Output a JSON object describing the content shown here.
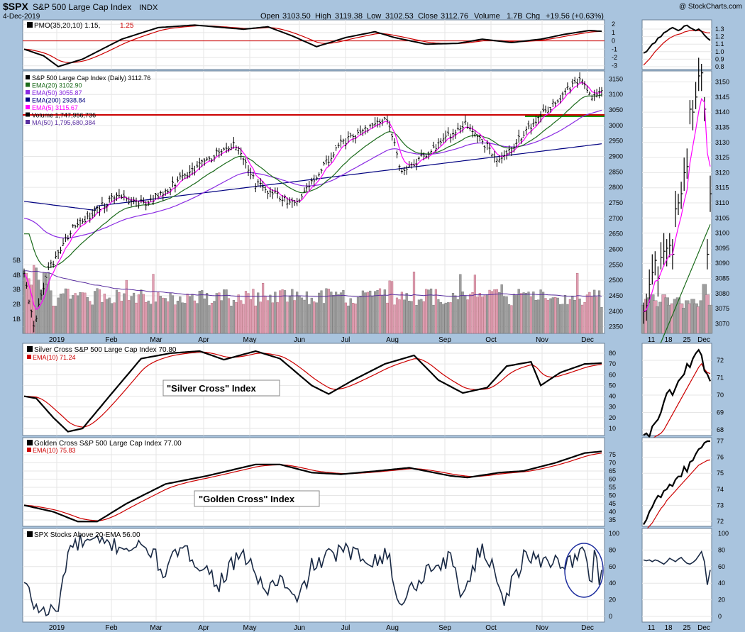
{
  "header": {
    "symbol": "$SPX",
    "name": "S&P 500 Large Cap Index",
    "exchange": "INDX",
    "watermark": "@ StockCharts.com",
    "date": "4-Dec-2019",
    "open_label": "Open",
    "open": "3103.50",
    "high_label": "High",
    "high": "3119.38",
    "low_label": "Low",
    "low": "3102.53",
    "close_label": "Close",
    "close": "3112.76",
    "volume_label": "Volume",
    "volume": "1.7B",
    "chg_label": "Chg",
    "chg": "+19.56 (+0.63%)"
  },
  "colors": {
    "background": "#a9c4de",
    "panel": "#ffffff",
    "price_bar": "#000000",
    "ema20": "#1b6b1b",
    "ema50": "#8a2be2",
    "ema200": "#000080",
    "ema5": "#ff00ff",
    "volume_up": "#9e9e9e",
    "volume_down": "#e0a0b4",
    "volume_ma": "#5a2fa0",
    "support_line": "#cc0000",
    "breakout_line": "#009900",
    "pmo": "#000000",
    "pmo_signal": "#cc0000",
    "circle": "#1f2f9f"
  },
  "main_x_labels": [
    "2019",
    "Feb",
    "Mar",
    "Apr",
    "May",
    "Jun",
    "Jul",
    "Aug",
    "Sep",
    "Oct",
    "Nov",
    "Dec"
  ],
  "zoom_x_labels": [
    "11",
    "18",
    "25",
    "Dec"
  ],
  "panels": {
    "pmo": {
      "legend_a": "PMO(35,20,10) 1.15,",
      "legend_b": "1.25",
      "y_ticks": [
        "2",
        "1",
        "0",
        "-1",
        "-2",
        "-3"
      ],
      "zoom_ticks": [
        "1.3",
        "1.2",
        "1.1",
        "1.0",
        "0.9",
        "0.8"
      ]
    },
    "price": {
      "legend": [
        {
          "text": "S&P 500 Large Cap Index (Daily) 3112.76",
          "color": "#000000"
        },
        {
          "text": "EMA(20) 3102.90",
          "color": "#1b6b1b"
        },
        {
          "text": "EMA(50) 3055.87",
          "color": "#8a2be2"
        },
        {
          "text": "EMA(200) 2938.84",
          "color": "#000080"
        },
        {
          "text": "EMA(5) 3115.67",
          "color": "#ff00ff"
        },
        {
          "text": "Volume 1,747,956,736",
          "color": "#000000"
        },
        {
          "text": "MA(50) 1,795,680,384",
          "color": "#5a2fa0"
        }
      ],
      "y_ticks": [
        "3150",
        "3100",
        "3050",
        "3000",
        "2950",
        "2900",
        "2850",
        "2800",
        "2750",
        "2700",
        "2650",
        "2600",
        "2550",
        "2500",
        "2450",
        "2400",
        "2350"
      ],
      "volume_ticks": [
        "5B",
        "4B",
        "3B",
        "2B",
        "1B"
      ],
      "zoom_ticks": [
        "3150",
        "3145",
        "3140",
        "3135",
        "3130",
        "3125",
        "3120",
        "3115",
        "3110",
        "3105",
        "3100",
        "3095",
        "3090",
        "3085",
        "3080",
        "3075",
        "3070"
      ]
    },
    "silver": {
      "legend_a": "Silver Cross S&P 500 Large Cap Index 70.80",
      "legend_b": "EMA(10) 71.24",
      "annotation": "\"Silver Cross\" Index",
      "y_ticks": [
        "80",
        "70",
        "60",
        "50",
        "40",
        "30",
        "20",
        "10"
      ],
      "zoom_ticks": [
        "72",
        "71",
        "70",
        "69",
        "68"
      ]
    },
    "golden": {
      "legend_a": "Golden Cross S&P 500 Large Cap Index 77.00",
      "legend_b": "EMA(10) 75.83",
      "annotation": "\"Golden Cross\" Index",
      "y_ticks": [
        "75",
        "70",
        "65",
        "60",
        "55",
        "50",
        "45",
        "40",
        "35"
      ],
      "zoom_ticks": [
        "77",
        "76",
        "75",
        "74",
        "73",
        "72"
      ]
    },
    "above20": {
      "legend": "SPX Stocks Above 20-EMA 56.00",
      "y_ticks": [
        "100",
        "80",
        "60",
        "40",
        "20",
        "0"
      ],
      "zoom_ticks": [
        "100",
        "80",
        "60",
        "40",
        "20",
        "0"
      ]
    }
  },
  "chart_data": {
    "type": "line",
    "title": "$SPX S&P 500 Large Cap Index",
    "x_range": [
      "2018-12-20",
      "2019-12-04"
    ],
    "series": [
      {
        "name": "S&P 500 Large Cap Index (Daily)",
        "points": [
          [
            "2018-12-24",
            2351
          ],
          [
            "2019-01-04",
            2532
          ],
          [
            "2019-01-18",
            2670
          ],
          [
            "2019-02-15",
            2775
          ],
          [
            "2019-03-08",
            2743
          ],
          [
            "2019-03-29",
            2834
          ],
          [
            "2019-04-30",
            2945
          ],
          [
            "2019-05-13",
            2812
          ],
          [
            "2019-06-03",
            2744
          ],
          [
            "2019-06-28",
            2941
          ],
          [
            "2019-07-26",
            3025
          ],
          [
            "2019-08-05",
            2844
          ],
          [
            "2019-09-12",
            3009
          ],
          [
            "2019-10-02",
            2887
          ],
          [
            "2019-10-28",
            3039
          ],
          [
            "2019-11-27",
            3153
          ],
          [
            "2019-12-03",
            3093
          ],
          [
            "2019-12-04",
            3112.76
          ]
        ]
      },
      {
        "name": "EMA(20)",
        "last": 3102.9
      },
      {
        "name": "EMA(50)",
        "last": 3055.87
      },
      {
        "name": "EMA(200)",
        "last": 2938.84
      },
      {
        "name": "EMA(5)",
        "last": 3115.67
      },
      {
        "name": "Volume",
        "last": 1747956736
      },
      {
        "name": "MA(50)",
        "last": 1795680384
      },
      {
        "name": "PMO(35,20,10)",
        "last": 1.15,
        "signal": 1.25
      },
      {
        "name": "Silver Cross S&P 500 Large Cap Index",
        "last": 70.8,
        "ema10": 71.24
      },
      {
        "name": "Golden Cross S&P 500 Large Cap Index",
        "last": 77.0,
        "ema10": 75.83
      },
      {
        "name": "SPX Stocks Above 20-EMA",
        "last": 56.0
      }
    ],
    "horizontal_lines": [
      3025,
      3030
    ]
  }
}
